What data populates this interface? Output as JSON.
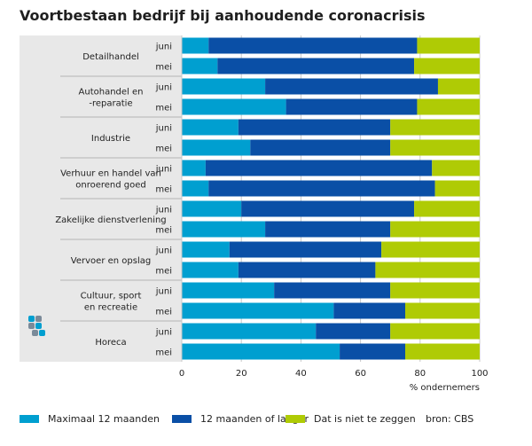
{
  "chart_data": {
    "type": "bar",
    "orientation": "horizontal",
    "stacked": true,
    "title": "Voortbestaan bedrijf bij aanhoudende coronacrisis",
    "xlabel": "% ondernemers",
    "xlim": [
      0,
      100
    ],
    "xticks": [
      0,
      20,
      40,
      60,
      80,
      100
    ],
    "grid": true,
    "groups": [
      {
        "label": [
          "Detailhandel"
        ],
        "periods": [
          {
            "label": "juni",
            "values": [
              9,
              70,
              21
            ]
          },
          {
            "label": "mei",
            "values": [
              12,
              66,
              22
            ]
          }
        ]
      },
      {
        "label": [
          "Autohandel en",
          "-reparatie"
        ],
        "periods": [
          {
            "label": "juni",
            "values": [
              28,
              58,
              14
            ]
          },
          {
            "label": "mei",
            "values": [
              35,
              44,
              21
            ]
          }
        ]
      },
      {
        "label": [
          "Industrie"
        ],
        "periods": [
          {
            "label": "juni",
            "values": [
              19,
              51,
              30
            ]
          },
          {
            "label": "mei",
            "values": [
              23,
              47,
              30
            ]
          }
        ]
      },
      {
        "label": [
          "Verhuur en handel van",
          "onroerend goed"
        ],
        "periods": [
          {
            "label": "juni",
            "values": [
              8,
              76,
              16
            ]
          },
          {
            "label": "mei",
            "values": [
              9,
              76,
              15
            ]
          }
        ]
      },
      {
        "label": [
          "Zakelijke dienstverlening"
        ],
        "periods": [
          {
            "label": "juni",
            "values": [
              20,
              58,
              22
            ]
          },
          {
            "label": "mei",
            "values": [
              28,
              42,
              30
            ]
          }
        ]
      },
      {
        "label": [
          "Vervoer en opslag"
        ],
        "periods": [
          {
            "label": "juni",
            "values": [
              16,
              51,
              33
            ]
          },
          {
            "label": "mei",
            "values": [
              19,
              46,
              35
            ]
          }
        ]
      },
      {
        "label": [
          "Cultuur, sport",
          "en recreatie"
        ],
        "periods": [
          {
            "label": "juni",
            "values": [
              31,
              39,
              30
            ]
          },
          {
            "label": "mei",
            "values": [
              51,
              24,
              25
            ]
          }
        ]
      },
      {
        "label": [
          "Horeca"
        ],
        "periods": [
          {
            "label": "juni",
            "values": [
              45,
              25,
              30
            ]
          },
          {
            "label": "mei",
            "values": [
              53,
              22,
              25
            ]
          }
        ]
      }
    ],
    "series": [
      {
        "name": "Maximaal 12 maanden",
        "color": "#009fd0"
      },
      {
        "name": "12 maanden of langer",
        "color": "#0a4fa6"
      },
      {
        "name": "Dat is niet te zeggen",
        "color": "#afcb05"
      }
    ],
    "legend_position": "bottom"
  },
  "source": "bron: CBS",
  "logo_icon": "cbs-logo-icon",
  "colors": {
    "panel": "#e8e8e8",
    "grid": "#c9c9c9",
    "separator": "#b5b5b5"
  }
}
